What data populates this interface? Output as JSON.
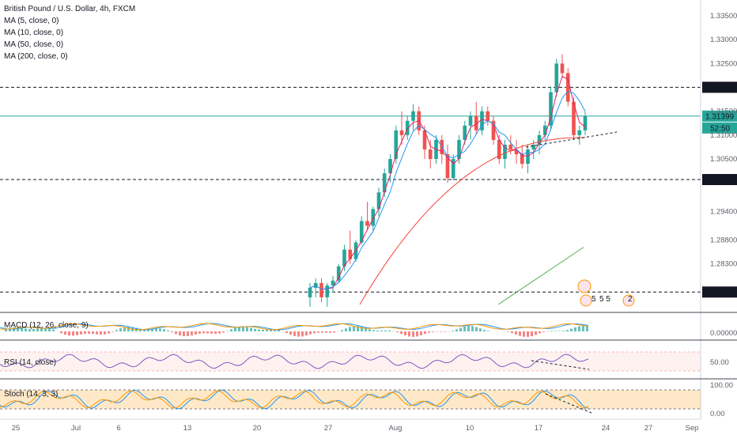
{
  "header": {
    "title": "British Pound / U.S. Dollar, 4h, FXCM",
    "indicators": [
      "MA (5, close, 0)",
      "MA (10, close, 0)",
      "MA (50, close, 0)",
      "MA (200, close, 0)"
    ]
  },
  "price_axis": {
    "ticks": [
      "1.33500",
      "1.33000",
      "1.32500",
      "1.31500",
      "1.31000",
      "1.30500",
      "1.29400",
      "1.28800",
      "1.28300"
    ],
    "current_price": "1.31399",
    "countdown": "52:50",
    "level_high": "1.32003",
    "level_mid": "1.30069",
    "level_low": "1.27711"
  },
  "time_axis": {
    "ticks": [
      "25",
      "Jul",
      "6",
      "13",
      "20",
      "27",
      "Aug",
      "10",
      "17",
      "24",
      "27",
      "Sep"
    ]
  },
  "macd": {
    "label": "MACD (12, 26, close, 9)",
    "ticks": [
      "0.00000"
    ]
  },
  "rsi": {
    "label": "RSI (14, close)",
    "ticks": [
      "50.00"
    ]
  },
  "stoch": {
    "label": "Stoch (14, 3, 3)",
    "ticks": [
      "100.00",
      "0.00"
    ]
  },
  "events": {
    "badge_a": "5",
    "badge_b": "5 5",
    "badge_c": "2"
  },
  "colors": {
    "up": "#26a69a",
    "down": "#ef5350",
    "ma5": "#e91e63",
    "ma10": "#2196f3",
    "ma50": "#f44336",
    "ma200": "#4caf50",
    "current": "#26a69a",
    "rsi": "#7e57c2",
    "stochK": "#2196f3",
    "stochD": "#ff9800",
    "macd": "#2196f3",
    "signal": "#ff9800"
  },
  "chart_data": {
    "type": "candlestick",
    "title": "British Pound / U.S. Dollar, 4h, FXCM",
    "symbol": "GBP/USD",
    "timeframe": "4h",
    "yrange": [
      1.274,
      1.337
    ],
    "horizontal_levels": [
      1.32003,
      1.30069,
      1.27711
    ],
    "current_price": 1.31399,
    "ticks": [
      1.335,
      1.33,
      1.325,
      1.315,
      1.31,
      1.305,
      1.294,
      1.288,
      1.283
    ],
    "ohlc": [
      [
        1.276,
        1.279,
        1.274,
        1.278
      ],
      [
        1.278,
        1.28,
        1.276,
        1.279
      ],
      [
        1.279,
        1.28,
        1.275,
        1.276
      ],
      [
        1.276,
        1.279,
        1.274,
        1.2785
      ],
      [
        1.2785,
        1.2805,
        1.277,
        1.2795
      ],
      [
        1.2795,
        1.283,
        1.279,
        1.2825
      ],
      [
        1.2825,
        1.287,
        1.2815,
        1.286
      ],
      [
        1.286,
        1.29,
        1.283,
        1.284
      ],
      [
        1.284,
        1.288,
        1.2835,
        1.2875
      ],
      [
        1.2875,
        1.293,
        1.287,
        1.292
      ],
      [
        1.292,
        1.296,
        1.29,
        1.291
      ],
      [
        1.291,
        1.295,
        1.29,
        1.2945
      ],
      [
        1.2945,
        1.299,
        1.293,
        1.298
      ],
      [
        1.298,
        1.303,
        1.297,
        1.302
      ],
      [
        1.302,
        1.306,
        1.3,
        1.305
      ],
      [
        1.305,
        1.312,
        1.304,
        1.311
      ],
      [
        1.311,
        1.315,
        1.308,
        1.31
      ],
      [
        1.31,
        1.314,
        1.309,
        1.313
      ],
      [
        1.313,
        1.3165,
        1.311,
        1.315
      ],
      [
        1.315,
        1.316,
        1.31,
        1.311
      ],
      [
        1.311,
        1.312,
        1.305,
        1.307
      ],
      [
        1.307,
        1.309,
        1.303,
        1.305
      ],
      [
        1.305,
        1.31,
        1.304,
        1.309
      ],
      [
        1.309,
        1.31,
        1.304,
        1.306
      ],
      [
        1.306,
        1.308,
        1.3,
        1.301
      ],
      [
        1.301,
        1.306,
        1.3005,
        1.305
      ],
      [
        1.305,
        1.31,
        1.304,
        1.309
      ],
      [
        1.309,
        1.313,
        1.308,
        1.312
      ],
      [
        1.312,
        1.315,
        1.309,
        1.314
      ],
      [
        1.314,
        1.317,
        1.31,
        1.311
      ],
      [
        1.311,
        1.316,
        1.31,
        1.315
      ],
      [
        1.315,
        1.316,
        1.312,
        1.313
      ],
      [
        1.313,
        1.314,
        1.308,
        1.309
      ],
      [
        1.309,
        1.31,
        1.304,
        1.305
      ],
      [
        1.305,
        1.309,
        1.303,
        1.308
      ],
      [
        1.308,
        1.31,
        1.306,
        1.307
      ],
      [
        1.307,
        1.309,
        1.304,
        1.306
      ],
      [
        1.306,
        1.308,
        1.303,
        1.304
      ],
      [
        1.304,
        1.308,
        1.302,
        1.307
      ],
      [
        1.307,
        1.309,
        1.305,
        1.308
      ],
      [
        1.308,
        1.311,
        1.306,
        1.31
      ],
      [
        1.31,
        1.313,
        1.309,
        1.312
      ],
      [
        1.312,
        1.32,
        1.311,
        1.319
      ],
      [
        1.319,
        1.326,
        1.318,
        1.325
      ],
      [
        1.325,
        1.327,
        1.322,
        1.323
      ],
      [
        1.323,
        1.324,
        1.316,
        1.317
      ],
      [
        1.317,
        1.318,
        1.309,
        1.31
      ],
      [
        1.31,
        1.312,
        1.308,
        1.311
      ],
      [
        1.311,
        1.315,
        1.31,
        1.314
      ]
    ]
  }
}
